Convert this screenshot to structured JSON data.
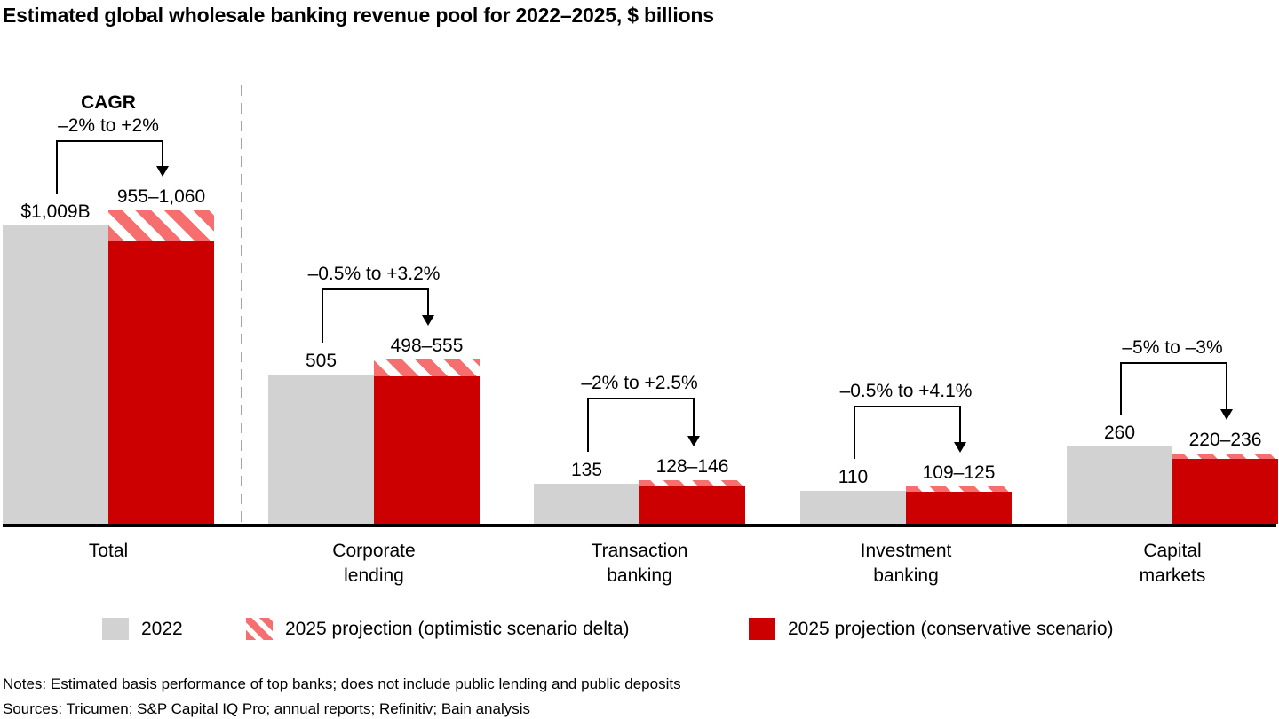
{
  "chart_data": {
    "type": "bar",
    "title": "Estimated global wholesale banking revenue pool for 2022–2025, $ billions",
    "ylabel": "$ billions",
    "ylim": [
      0,
      1100
    ],
    "grid": false,
    "legend_position": "bottom",
    "categories": [
      "Total",
      "Corporate lending",
      "Transaction banking",
      "Investment banking",
      "Capital markets"
    ],
    "series": [
      {
        "name": "2022",
        "values": [
          1009,
          505,
          135,
          110,
          260
        ]
      },
      {
        "name": "2025 projection (conservative scenario)",
        "values": [
          955,
          498,
          128,
          109,
          220
        ]
      },
      {
        "name": "2025 projection (optimistic scenario)",
        "values": [
          1060,
          555,
          146,
          125,
          236
        ]
      }
    ],
    "groups": [
      {
        "category": "Total",
        "category_lines": "Total",
        "cagr_heading": "CAGR",
        "cagr": "–2% to +2%",
        "v2022": 1009,
        "v2022_label": "$1,009B",
        "proj_low": 955,
        "proj_high": 1060,
        "proj_label": "955–1,060"
      },
      {
        "category": "Corporate lending",
        "category_lines": "Corporate\nlending",
        "cagr": "–0.5% to +3.2%",
        "v2022": 505,
        "v2022_label": "505",
        "proj_low": 498,
        "proj_high": 555,
        "proj_label": "498–555"
      },
      {
        "category": "Transaction banking",
        "category_lines": "Transaction\nbanking",
        "cagr": "–2% to +2.5%",
        "v2022": 135,
        "v2022_label": "135",
        "proj_low": 128,
        "proj_high": 146,
        "proj_label": "128–146"
      },
      {
        "category": "Investment banking",
        "category_lines": "Investment\nbanking",
        "cagr": "–0.5% to +4.1%",
        "v2022": 110,
        "v2022_label": "110",
        "proj_low": 109,
        "proj_high": 125,
        "proj_label": "109–125"
      },
      {
        "category": "Capital markets",
        "category_lines": "Capital\nmarkets",
        "cagr": "–5% to –3%",
        "v2022": 260,
        "v2022_label": "260",
        "proj_low": 220,
        "proj_high": 236,
        "proj_label": "220–236"
      }
    ],
    "legend": [
      {
        "swatch": "gray",
        "label": "2022"
      },
      {
        "swatch": "striped",
        "label": "2025 projection (optimistic scenario delta)"
      },
      {
        "swatch": "red",
        "label": "2025 projection (conservative scenario)"
      }
    ],
    "colors": {
      "bar_2022": "#d2d2d2",
      "conservative": "#cc0000",
      "optimistic_stripe": "#f66f6e",
      "axis": "#000000",
      "separator": "#a3a3a3"
    },
    "notes": "Notes: Estimated basis performance of top banks; does not include public lending and public deposits",
    "sources": "Sources: Tricumen; S&P Capital IQ Pro; annual reports; Refinitiv; Bain analysis"
  }
}
